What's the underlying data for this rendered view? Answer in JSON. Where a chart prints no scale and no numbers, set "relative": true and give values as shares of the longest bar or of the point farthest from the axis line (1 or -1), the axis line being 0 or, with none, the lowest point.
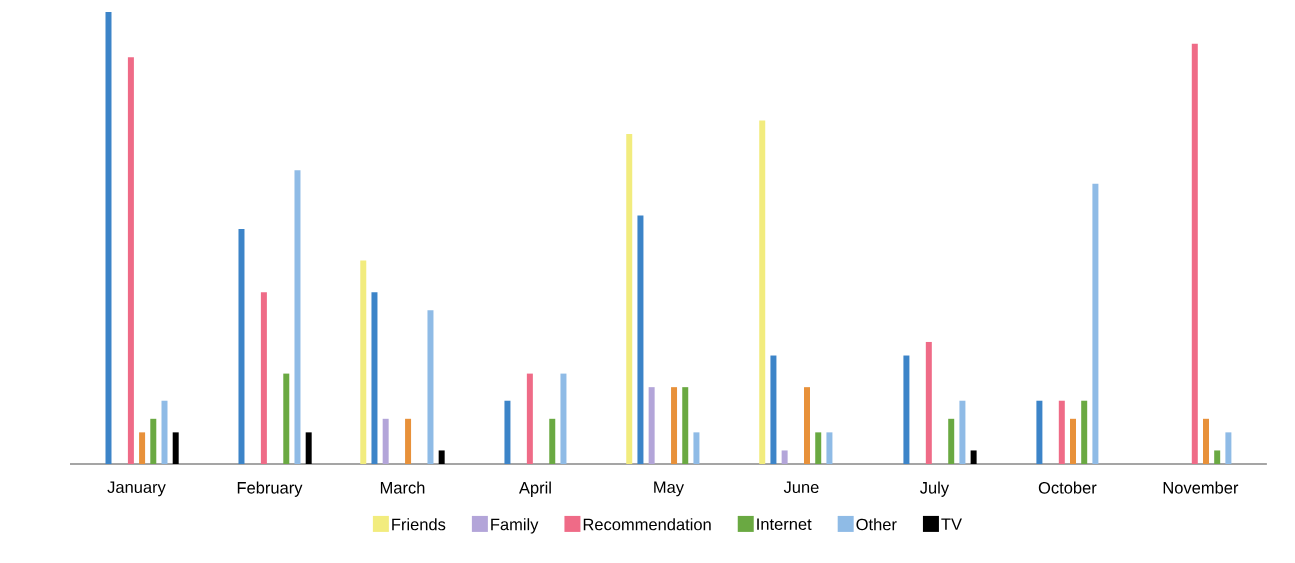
{
  "chart_data": {
    "type": "bar",
    "relative": true,
    "legend": "bottom",
    "categories": [
      "January",
      "February",
      "March",
      "April",
      "May",
      "June",
      "July",
      "October",
      "November"
    ],
    "series": [
      {
        "name": "Friends",
        "color": "#f2ec7e",
        "values": [
          null,
          null,
          0.45,
          null,
          0.73,
          0.76,
          null,
          null,
          null
        ]
      },
      {
        "color": "#3c84c8",
        "values": [
          1,
          0.52,
          0.38,
          0.14,
          0.55,
          0.24,
          0.24,
          0.14,
          null
        ]
      },
      {
        "name": "Family",
        "color": "#b3a5d9",
        "values": [
          null,
          null,
          0.1,
          null,
          0.17,
          0.03,
          null,
          null,
          null
        ]
      },
      {
        "name": "Recommendation",
        "color": "#ef6b87",
        "values": [
          0.9,
          0.38,
          null,
          0.2,
          null,
          null,
          0.27,
          0.14,
          0.93
        ]
      },
      {
        "color": "#e8913a",
        "values": [
          0.07,
          null,
          0.1,
          null,
          0.17,
          0.17,
          null,
          0.1,
          0.1
        ]
      },
      {
        "name": "Internet",
        "color": "#6aa942",
        "values": [
          0.1,
          0.2,
          null,
          0.1,
          0.17,
          0.07,
          0.1,
          0.14,
          0.03
        ]
      },
      {
        "name": "Other",
        "color": "#8fbbe6",
        "values": [
          0.14,
          0.65,
          0.34,
          0.2,
          0.07,
          0.07,
          0.14,
          0.62,
          0.07
        ]
      },
      {
        "name": "TV",
        "color": "#000000",
        "values": [
          0.07,
          0.07,
          0.03,
          null,
          null,
          null,
          0.03,
          null,
          null
        ]
      }
    ]
  }
}
